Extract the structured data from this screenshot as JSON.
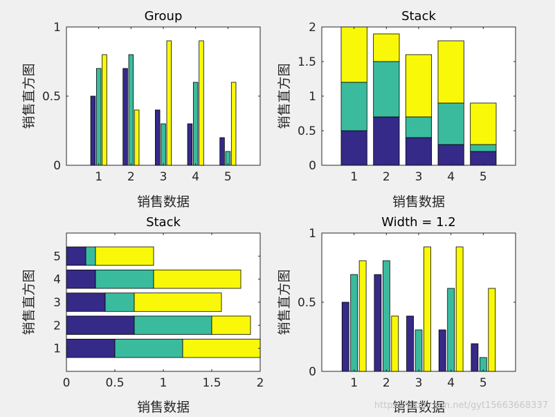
{
  "colors": [
    "#352a87",
    "#3bbb9e",
    "#f8f808"
  ],
  "watermark": "https://blog.csdn.net/gyt15663668337",
  "chart_data": [
    {
      "type": "bar",
      "mode": "grouped",
      "orientation": "vertical",
      "title": "Group",
      "xlabel": "销售数据",
      "ylabel": "销售直方图",
      "categories": [
        1,
        2,
        3,
        4,
        5
      ],
      "series": [
        {
          "values": [
            0.5,
            0.7,
            0.4,
            0.3,
            0.2
          ]
        },
        {
          "values": [
            0.7,
            0.8,
            0.3,
            0.6,
            0.1
          ]
        },
        {
          "values": [
            0.8,
            0.4,
            0.9,
            0.9,
            0.6
          ]
        }
      ],
      "xlim": [
        0,
        6
      ],
      "ylim": [
        0,
        1
      ],
      "xticks": [
        1,
        2,
        3,
        4,
        5
      ],
      "yticks": [
        0,
        0.5,
        1
      ],
      "ytick_labels": [
        "0",
        "0.5",
        "1"
      ],
      "bar_width": 0.8,
      "grid": false
    },
    {
      "type": "bar",
      "mode": "stacked",
      "orientation": "vertical",
      "title": "Stack",
      "xlabel": "销售数据",
      "ylabel": "销售直方图",
      "categories": [
        1,
        2,
        3,
        4,
        5
      ],
      "series": [
        {
          "values": [
            0.5,
            0.7,
            0.4,
            0.3,
            0.2
          ]
        },
        {
          "values": [
            0.7,
            0.8,
            0.3,
            0.6,
            0.1
          ]
        },
        {
          "values": [
            0.8,
            0.4,
            0.9,
            0.9,
            0.6
          ]
        }
      ],
      "xlim": [
        0,
        6
      ],
      "ylim": [
        0,
        2
      ],
      "xticks": [
        1,
        2,
        3,
        4,
        5
      ],
      "yticks": [
        0,
        0.5,
        1,
        1.5,
        2
      ],
      "ytick_labels": [
        "0",
        "0.5",
        "1",
        "1.5",
        "2"
      ],
      "bar_width": 0.8,
      "grid": false
    },
    {
      "type": "bar",
      "mode": "stacked",
      "orientation": "horizontal",
      "title": "Stack",
      "xlabel": "销售数据",
      "ylabel": "销售直方图",
      "categories": [
        1,
        2,
        3,
        4,
        5
      ],
      "series": [
        {
          "values": [
            0.5,
            0.7,
            0.4,
            0.3,
            0.2
          ]
        },
        {
          "values": [
            0.7,
            0.8,
            0.3,
            0.6,
            0.1
          ]
        },
        {
          "values": [
            0.8,
            0.4,
            0.9,
            0.9,
            0.6
          ]
        }
      ],
      "xlim": [
        0,
        2
      ],
      "ylim": [
        0,
        6
      ],
      "xticks": [
        0,
        0.5,
        1,
        1.5,
        2
      ],
      "xtick_labels": [
        "0",
        "0.5",
        "1",
        "1.5",
        "2"
      ],
      "yticks": [
        1,
        2,
        3,
        4,
        5
      ],
      "bar_width": 0.8,
      "grid": false
    },
    {
      "type": "bar",
      "mode": "grouped",
      "orientation": "vertical",
      "title": "Width = 1.2",
      "xlabel": "销售数据",
      "ylabel": "销售直方图",
      "categories": [
        1,
        2,
        3,
        4,
        5
      ],
      "series": [
        {
          "values": [
            0.5,
            0.7,
            0.4,
            0.3,
            0.2
          ]
        },
        {
          "values": [
            0.7,
            0.8,
            0.3,
            0.6,
            0.1
          ]
        },
        {
          "values": [
            0.8,
            0.4,
            0.9,
            0.9,
            0.6
          ]
        }
      ],
      "xlim": [
        0,
        6
      ],
      "ylim": [
        0,
        1
      ],
      "xticks": [
        1,
        2,
        3,
        4,
        5
      ],
      "yticks": [
        0,
        0.5,
        1
      ],
      "ytick_labels": [
        "0",
        "0.5",
        "1"
      ],
      "bar_width": 1.2,
      "grid": false
    }
  ]
}
